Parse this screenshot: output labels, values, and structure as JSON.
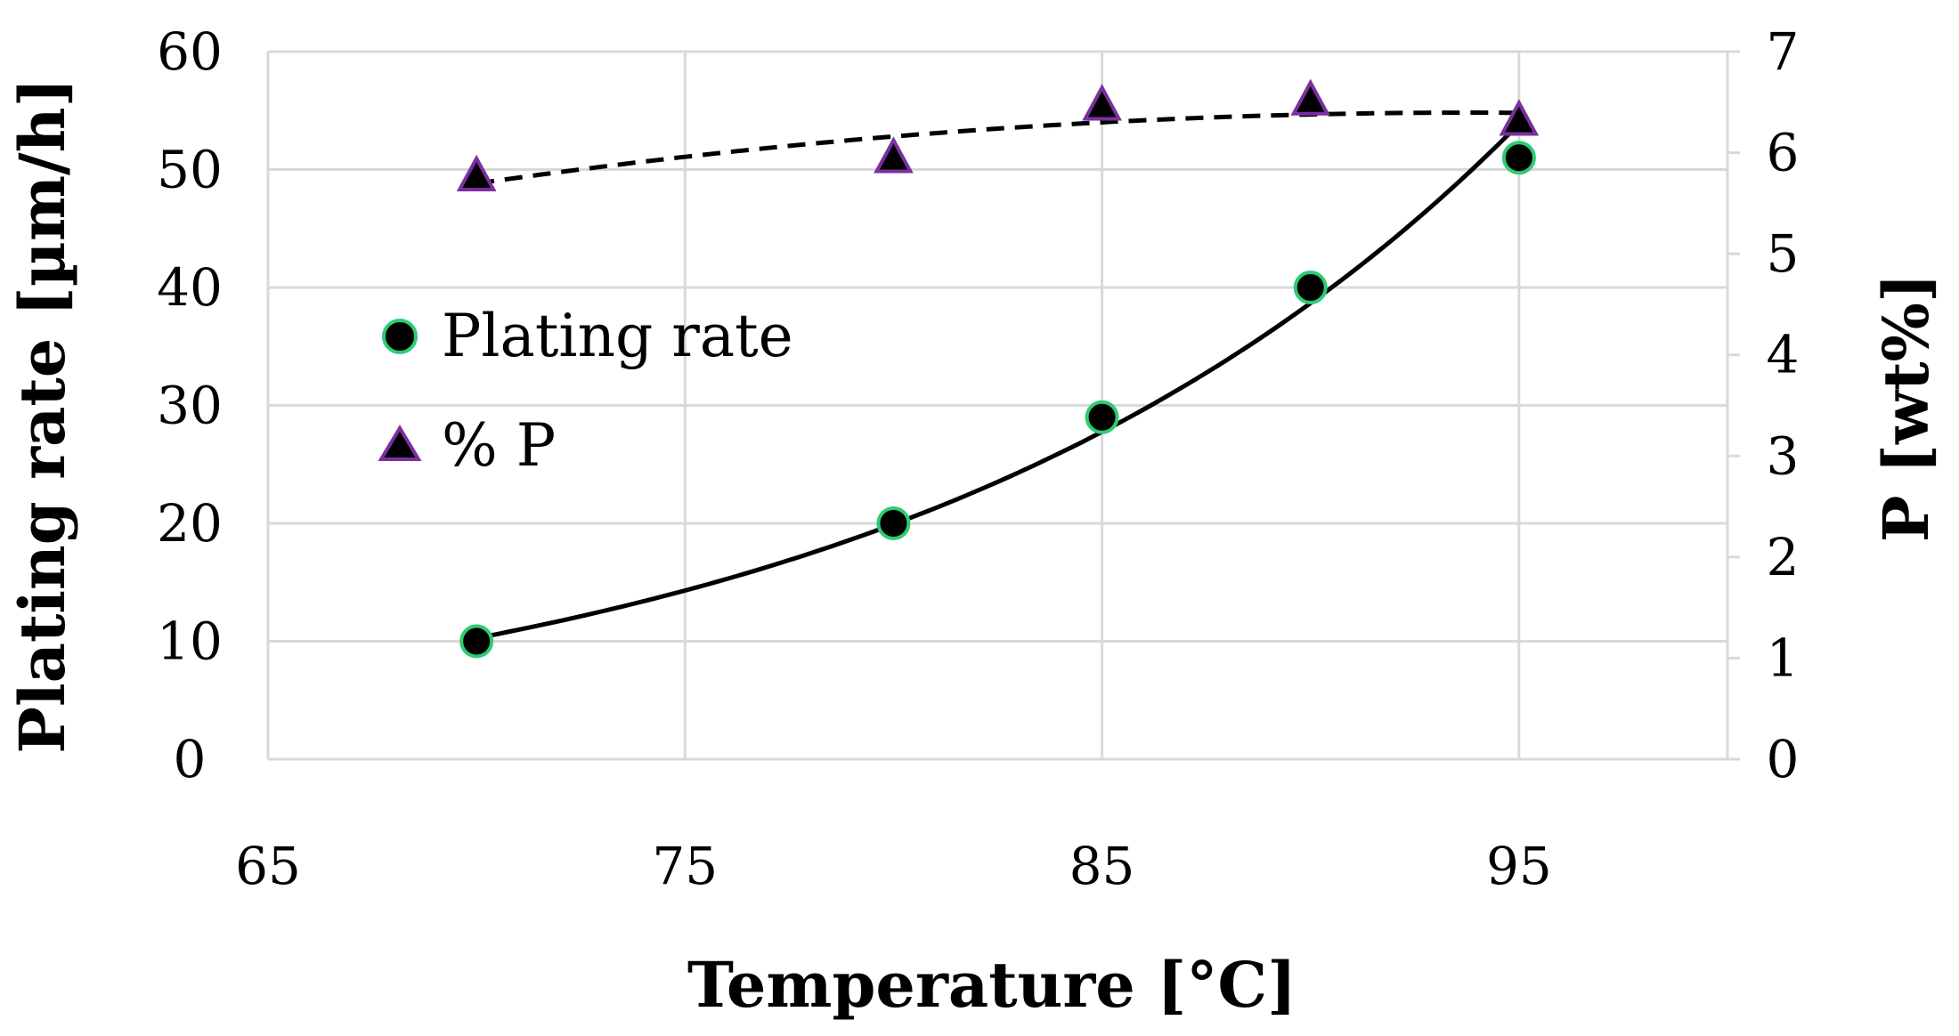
{
  "chart_data": {
    "type": "scatter",
    "title": "",
    "xlabel": "Temperature  [°C]",
    "ylabel": "Plating rate [µm/h]",
    "y2label": "P [wt%]",
    "xlim": [
      65,
      100
    ],
    "ylim": [
      0,
      60
    ],
    "y2lim": [
      0,
      7
    ],
    "xticks": [
      "65",
      "75",
      "85",
      "95"
    ],
    "xtick_values": [
      65,
      75,
      85,
      95
    ],
    "xgrid_values": [
      65,
      75,
      85,
      95,
      100
    ],
    "yticks": [
      "0",
      "10",
      "20",
      "30",
      "40",
      "50",
      "60"
    ],
    "ytick_values": [
      0,
      10,
      20,
      30,
      40,
      50,
      60
    ],
    "y2ticks": [
      "0",
      "1",
      "2",
      "3",
      "4",
      "5",
      "6",
      "7"
    ],
    "y2tick_values": [
      0,
      1,
      2,
      3,
      4,
      5,
      6,
      7
    ],
    "grid": true,
    "legend_position": "center-left",
    "series": [
      {
        "name": "Plating rate",
        "axis": "left",
        "marker": "circle",
        "marker_color": "#000000",
        "marker_edge": "#2ecc71",
        "x": [
          70,
          80,
          85,
          90,
          95
        ],
        "y": [
          10,
          20,
          29,
          40,
          51
        ],
        "trendline": "exponential",
        "trendline_style": "solid"
      },
      {
        "name": "% P",
        "axis": "right",
        "marker": "triangle",
        "marker_color": "#000000",
        "marker_edge": "#7b2fa0",
        "x": [
          70,
          80,
          85,
          90,
          95
        ],
        "y": [
          5.75,
          5.93,
          6.45,
          6.5,
          6.3
        ],
        "trendline": "polynomial",
        "trendline_style": "dashed"
      }
    ],
    "colors": {
      "grid": "#d9d9d9",
      "axis": "#d9d9d9",
      "line": "#000000"
    }
  }
}
